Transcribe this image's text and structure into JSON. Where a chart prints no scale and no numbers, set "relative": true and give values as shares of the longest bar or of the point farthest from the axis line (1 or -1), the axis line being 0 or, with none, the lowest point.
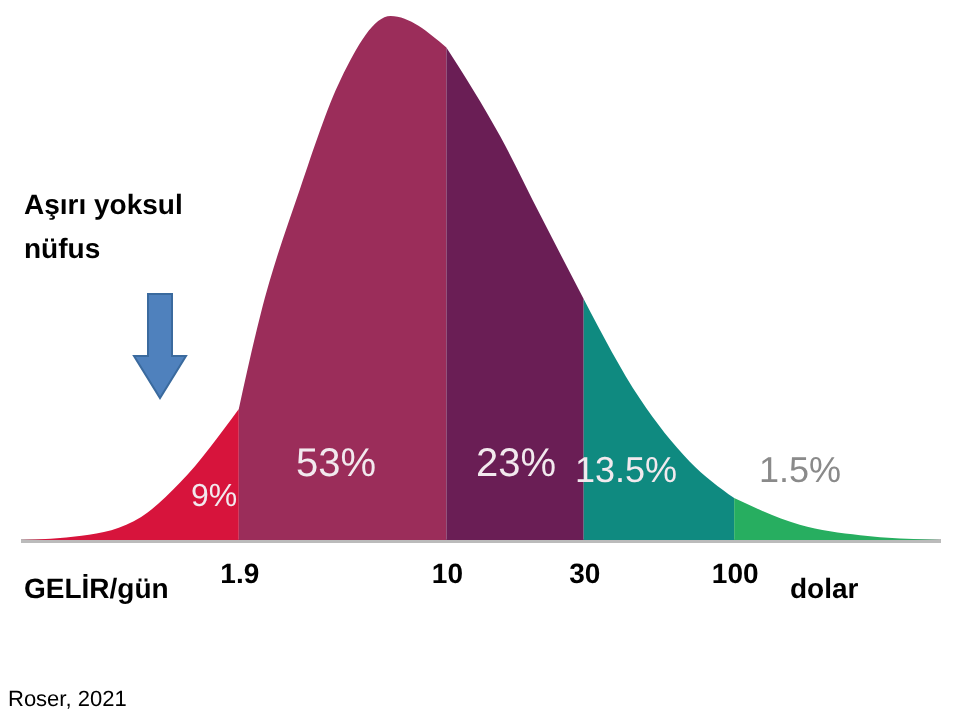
{
  "chart_data": {
    "type": "area",
    "relative": true,
    "log": "x",
    "xlim": [
      0.33,
      519
    ],
    "xticks": [
      1.9,
      10,
      30,
      100
    ],
    "grid": false,
    "series": [
      {
        "color": "#d7143c",
        "x": [
          0.33,
          0.54,
          0.87,
          1.19,
          1.9
        ],
        "values": [
          0,
          0.008,
          0.044,
          0.11,
          0.25
        ]
      },
      {
        "color": "#9b2d5a",
        "x": [
          1.9,
          2.26,
          3.1,
          4.3,
          6.4,
          10
        ],
        "values": [
          0.25,
          0.43,
          0.67,
          0.88,
          1,
          0.94
        ]
      },
      {
        "color": "#6a1e55",
        "x": [
          10,
          15.4,
          21.2,
          30
        ],
        "values": [
          0.94,
          0.77,
          0.62,
          0.46
        ]
      },
      {
        "color": "#0f8a80",
        "x": [
          30,
          47,
          70,
          100
        ],
        "values": [
          0.46,
          0.27,
          0.15,
          0.08
        ]
      },
      {
        "color": "#27ae60",
        "x": [
          100,
          169,
          274,
          519
        ],
        "values": [
          0.08,
          0.029,
          0.009,
          0
        ]
      }
    ],
    "annotations": [
      "Aşırı yoksul nüfus",
      "GELİR/gün",
      "dolar",
      "Roser, 2021",
      "9%",
      "53%",
      "23%",
      "13.5%",
      "1.5%"
    ]
  }
}
